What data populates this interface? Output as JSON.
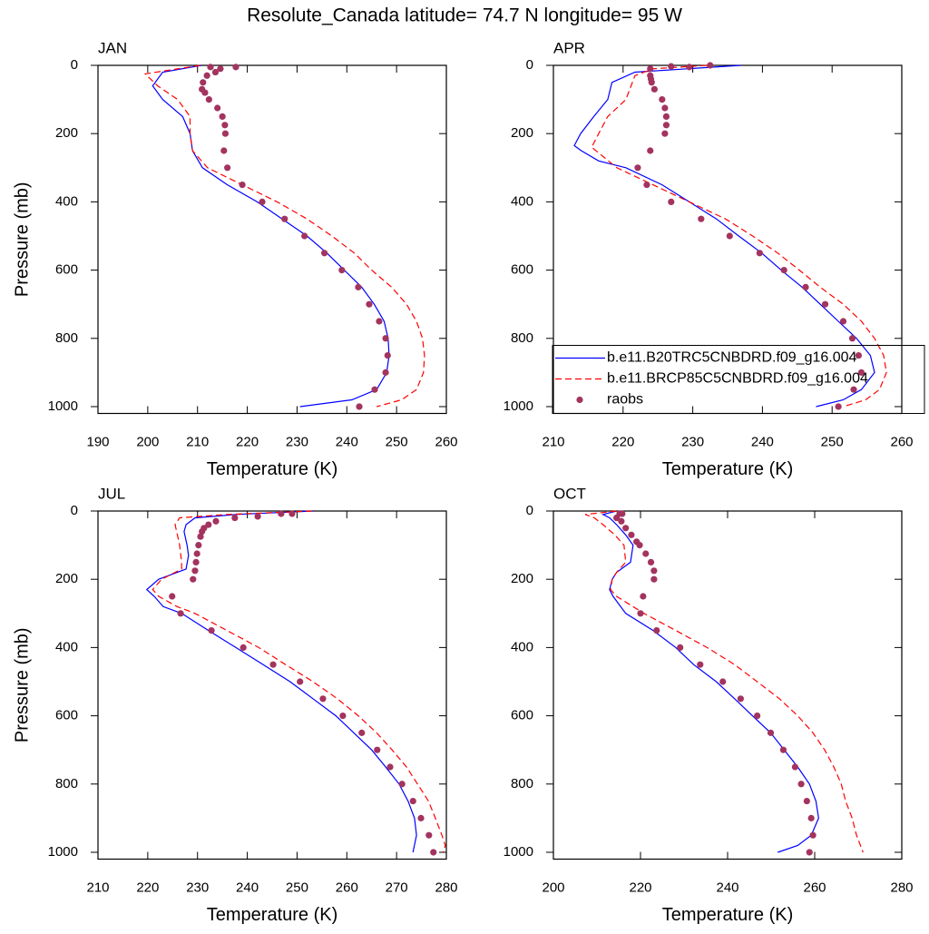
{
  "title": "Resolute_Canada  latitude= 74.7 N longitude= 95 W",
  "chart_data": [
    {
      "type": "line",
      "panel_label": "JAN",
      "xlabel": "Temperature (K)",
      "ylabel": "Pressure (mb)",
      "xlim": [
        190,
        260
      ],
      "xticks": [
        190,
        200,
        210,
        220,
        230,
        240,
        250,
        260
      ],
      "ylim": [
        1020,
        0
      ],
      "yticks": [
        0,
        200,
        400,
        600,
        800,
        1000
      ],
      "series": [
        {
          "name": "b.e11.B20TRC5CNBDRD.f09_g16.004",
          "type": "line",
          "linestyle": "solid",
          "color": "#0000ff",
          "x": [
            210.8,
            203,
            201,
            203,
            207,
            208.5,
            209,
            211,
            216,
            222,
            227,
            232,
            236,
            239.5,
            243,
            245.5,
            247.5,
            248.3,
            248.5,
            248,
            246,
            241,
            230.6
          ],
          "y": [
            0,
            20,
            60,
            100,
            150,
            200,
            250,
            300,
            350,
            400,
            450,
            500,
            550,
            600,
            650,
            700,
            750,
            800,
            850,
            900,
            950,
            980,
            1000
          ]
        },
        {
          "name": "b.e11.BRCP85C5CNBDRD.f09_g16.004",
          "type": "line",
          "linestyle": "dashed",
          "color": "#ff0000",
          "x": [
            210.5,
            199.5,
            202,
            206,
            208.5,
            208.5,
            209,
            212,
            219,
            226,
            232,
            237,
            241.5,
            245,
            249,
            252,
            254,
            255.2,
            255.6,
            255.4,
            254,
            251,
            246
          ],
          "y": [
            0,
            25,
            60,
            100,
            150,
            200,
            250,
            300,
            350,
            400,
            450,
            500,
            550,
            600,
            650,
            700,
            750,
            800,
            850,
            900,
            950,
            980,
            1000
          ]
        },
        {
          "name": "raobs",
          "type": "scatter",
          "color": "#a3335f",
          "x": [
            217.7,
            214.6,
            212.6,
            213.6,
            211.9,
            211.1,
            210.9,
            211.5,
            212.3,
            214,
            215,
            215.5,
            215.6,
            215.3,
            216,
            219,
            223,
            227.5,
            231.5,
            235.5,
            239,
            242.3,
            244.5,
            246.5,
            247.8,
            248.2,
            247.8,
            245.6,
            242.5
          ],
          "y": [
            5,
            10,
            5,
            20,
            30,
            50,
            70,
            80,
            100,
            125,
            150,
            175,
            200,
            250,
            300,
            350,
            400,
            450,
            500,
            550,
            600,
            650,
            700,
            750,
            800,
            850,
            900,
            950,
            1000
          ]
        }
      ]
    },
    {
      "type": "line",
      "panel_label": "APR",
      "xlabel": "Temperature (K)",
      "legend": "lower right",
      "xlim": [
        210,
        260
      ],
      "xticks": [
        210,
        220,
        230,
        240,
        250,
        260
      ],
      "ylim": [
        1020,
        0
      ],
      "yticks": [
        0,
        200,
        400,
        600,
        800,
        1000
      ],
      "series": [
        {
          "name": "b.e11.B20TRC5CNBDRD.f09_g16.004",
          "type": "line",
          "linestyle": "solid",
          "color": "#0000ff",
          "x": [
            236.9,
            221.7,
            218.4,
            217.8,
            215.8,
            213.9,
            213,
            214,
            216.5,
            220.4,
            225.6,
            229.5,
            233.4,
            236.6,
            239.9,
            242.7,
            245.7,
            248.3,
            250.9,
            253.5,
            255.5,
            256.1,
            254.2,
            251.6,
            247.7
          ],
          "y": [
            0,
            20,
            50,
            100,
            150,
            200,
            235,
            250,
            280,
            300,
            350,
            400,
            450,
            500,
            550,
            600,
            650,
            700,
            750,
            800,
            850,
            900,
            950,
            980,
            1000
          ]
        },
        {
          "name": "b.e11.BRCP85C5CNBDRD.f09_g16.004",
          "type": "line",
          "linestyle": "dashed",
          "color": "#ff0000",
          "x": [
            232,
            224.3,
            221.7,
            220.4,
            217.8,
            216.5,
            215.5,
            219.1,
            224.3,
            229.5,
            234.7,
            238.6,
            242.2,
            245.3,
            248.3,
            251.6,
            254.2,
            256.1,
            257.4,
            257.8,
            256.8,
            254.8,
            251.6
          ],
          "y": [
            0,
            10,
            30,
            100,
            150,
            200,
            240,
            300,
            350,
            400,
            450,
            500,
            550,
            600,
            650,
            700,
            750,
            800,
            850,
            900,
            950,
            980,
            1000
          ]
        },
        {
          "name": "raobs",
          "type": "scatter",
          "color": "#a3335f",
          "x": [
            232.5,
            229.5,
            226.9,
            223.9,
            223.9,
            224,
            224.1,
            224.5,
            225.6,
            226,
            226.2,
            226.2,
            226,
            223.9,
            222.1,
            223.4,
            226.9,
            231.2,
            235.3,
            239.6,
            243.1,
            246.2,
            249,
            251.6,
            252.9,
            253.8,
            254.2,
            253.1,
            250.9
          ],
          "y": [
            0,
            5,
            3,
            10,
            30,
            40,
            50,
            70,
            100,
            125,
            150,
            175,
            200,
            250,
            300,
            350,
            400,
            450,
            500,
            550,
            600,
            650,
            700,
            750,
            800,
            850,
            900,
            950,
            1000
          ]
        }
      ]
    },
    {
      "type": "line",
      "panel_label": "JUL",
      "xlabel": "Temperature (K)",
      "ylabel": "Pressure (mb)",
      "xlim": [
        210,
        280
      ],
      "xticks": [
        210,
        220,
        230,
        240,
        250,
        260,
        270,
        280
      ],
      "ylim": [
        1020,
        0
      ],
      "yticks": [
        0,
        200,
        400,
        600,
        800,
        1000
      ],
      "series": [
        {
          "name": "b.e11.B20TRC5CNBDRD.f09_g16.004",
          "type": "line",
          "linestyle": "solid",
          "color": "#0000ff",
          "x": [
            253.2,
            237.7,
            229.5,
            227.7,
            227.3,
            227.9,
            228.2,
            227.7,
            222.2,
            219.8,
            221.3,
            223.1,
            226.8,
            232.2,
            237.7,
            243.2,
            248.6,
            253.2,
            257.8,
            261.4,
            265,
            267.8,
            270.5,
            272.3,
            273.6,
            274,
            273.3
          ],
          "y": [
            0,
            10,
            20,
            40,
            60,
            100,
            130,
            170,
            200,
            230,
            250,
            280,
            300,
            350,
            400,
            450,
            500,
            550,
            600,
            650,
            700,
            750,
            800,
            850,
            900,
            950,
            1000
          ]
        },
        {
          "name": "b.e11.BRCP85C5CNBDRD.f09_g16.004",
          "type": "line",
          "linestyle": "dashed",
          "color": "#ff0000",
          "x": [
            253,
            235.9,
            226.4,
            225.5,
            226.4,
            226.8,
            226.8,
            222.8,
            221,
            222.2,
            225.9,
            229.5,
            235.9,
            242.3,
            247.7,
            253.2,
            258.1,
            262.3,
            266,
            269.1,
            272,
            274.2,
            276.4,
            277.8,
            279.1,
            279.8,
            279.3
          ],
          "y": [
            0,
            10,
            20,
            40,
            100,
            150,
            170,
            200,
            230,
            250,
            280,
            300,
            350,
            400,
            450,
            500,
            550,
            600,
            650,
            700,
            750,
            800,
            850,
            900,
            950,
            980,
            1000
          ]
        },
        {
          "name": "raobs",
          "type": "scatter",
          "color": "#a3335f",
          "x": [
            249,
            246.8,
            242.1,
            237.5,
            233.7,
            232.2,
            231.3,
            230.9,
            230.6,
            230.2,
            229.9,
            229.7,
            229.5,
            229.1,
            224.9,
            226.6,
            232.8,
            239.2,
            245.2,
            250.6,
            255.2,
            259.2,
            263,
            266.1,
            268.7,
            271.1,
            273.3,
            274.9,
            276.5,
            277.4
          ],
          "y": [
            8,
            8,
            16,
            20,
            30,
            40,
            50,
            60,
            75,
            100,
            125,
            150,
            175,
            200,
            250,
            300,
            350,
            400,
            450,
            500,
            550,
            600,
            650,
            700,
            750,
            800,
            850,
            900,
            950,
            1000
          ]
        }
      ]
    },
    {
      "type": "line",
      "panel_label": "OCT",
      "xlabel": "Temperature (K)",
      "xlim": [
        200,
        280
      ],
      "xticks": [
        200,
        220,
        240,
        260,
        280
      ],
      "ylim": [
        1020,
        0
      ],
      "yticks": [
        0,
        200,
        400,
        600,
        800,
        1000
      ],
      "series": [
        {
          "name": "b.e11.B20TRC5CNBDRD.f09_g16.004",
          "type": "line",
          "linestyle": "solid",
          "color": "#0000ff",
          "x": [
            214.5,
            211.4,
            212.9,
            214.5,
            216.6,
            218.3,
            217.7,
            214.5,
            213.5,
            212.9,
            213.7,
            216.6,
            222.9,
            228.1,
            232.2,
            237.4,
            241.6,
            245.7,
            249.9,
            253,
            256.1,
            258.8,
            260.3,
            260.9,
            259.2,
            256.1,
            251.5
          ],
          "y": [
            0,
            10,
            20,
            40,
            70,
            100,
            150,
            180,
            200,
            230,
            250,
            300,
            350,
            400,
            450,
            500,
            550,
            600,
            650,
            700,
            750,
            800,
            850,
            900,
            950,
            980,
            1000
          ]
        },
        {
          "name": "b.e11.BRCP85C5CNBDRD.f09_g16.004",
          "type": "line",
          "linestyle": "dashed",
          "color": "#ff0000",
          "x": [
            214.5,
            207.3,
            209.4,
            211.4,
            214.1,
            216.2,
            216.6,
            214.5,
            213.5,
            213.1,
            214.5,
            220.8,
            228.1,
            235.3,
            241.6,
            246.8,
            251.9,
            256.1,
            259.6,
            262.3,
            264.4,
            266.1,
            267.1,
            268.6,
            269.6,
            271.1
          ],
          "y": [
            0,
            10,
            20,
            40,
            70,
            100,
            150,
            180,
            200,
            230,
            250,
            300,
            350,
            400,
            450,
            500,
            550,
            600,
            650,
            700,
            750,
            800,
            850,
            900,
            950,
            1000
          ]
        },
        {
          "name": "raobs",
          "type": "scatter",
          "color": "#a3335f",
          "x": [
            215.8,
            215.2,
            214.5,
            215.6,
            216.6,
            217.9,
            219.1,
            219.8,
            221.2,
            222.4,
            223.1,
            223.1,
            220.6,
            220,
            223.7,
            229.1,
            233.7,
            238.9,
            243,
            246.8,
            249.9,
            252.8,
            255.5,
            256.9,
            258.2,
            259.2,
            259.6,
            258.8
          ],
          "y": [
            8,
            8,
            20,
            30,
            50,
            70,
            90,
            100,
            125,
            150,
            175,
            200,
            250,
            300,
            350,
            400,
            450,
            500,
            550,
            600,
            650,
            700,
            750,
            800,
            850,
            900,
            950,
            1000
          ]
        }
      ]
    }
  ]
}
